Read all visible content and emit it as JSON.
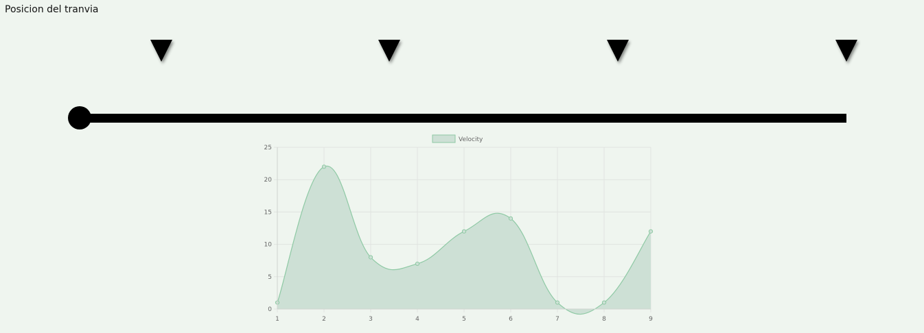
{
  "page": {
    "title": "Posicion del tranvia"
  },
  "track": {
    "stops": [
      {
        "name": "stop-1"
      },
      {
        "name": "stop-2"
      },
      {
        "name": "stop-3"
      },
      {
        "name": "stop-4"
      }
    ],
    "marker_icon": "triangle-down-icon",
    "tram_icon": "circle-icon"
  },
  "colors": {
    "background": "#eff5ef",
    "series_line": "#8ec9a4",
    "series_fill": "#cde0d5",
    "grid": "#e0e4e0"
  },
  "chart_data": {
    "type": "area",
    "x": [
      "1",
      "2",
      "3",
      "4",
      "5",
      "6",
      "7",
      "8",
      "9"
    ],
    "series": [
      {
        "name": "Velocity",
        "values": [
          1,
          22,
          8,
          7,
          12,
          14,
          1,
          1,
          12
        ]
      }
    ],
    "ylim": [
      0,
      25
    ],
    "yticks": [
      "0",
      "5",
      "10",
      "15",
      "20",
      "25"
    ],
    "legend": "top-center",
    "grid": true,
    "title": "",
    "xlabel": "",
    "ylabel": ""
  }
}
